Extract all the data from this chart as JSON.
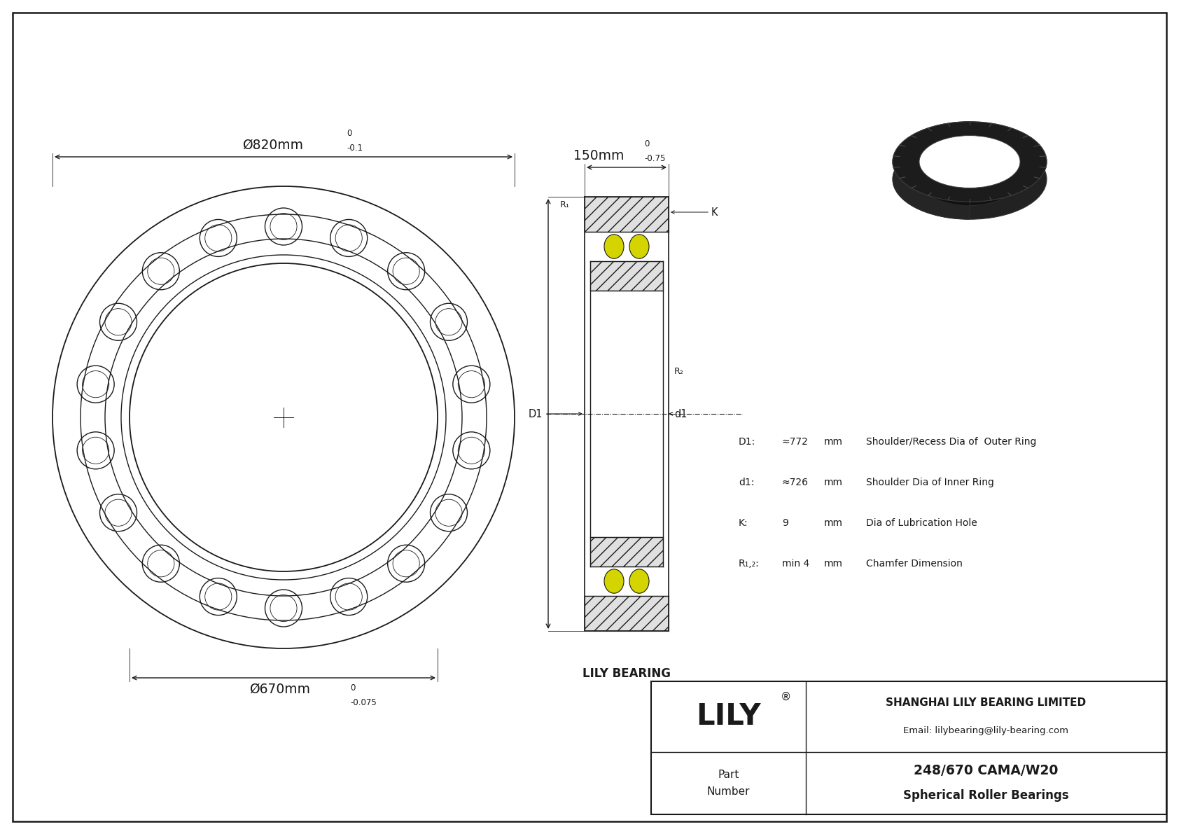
{
  "bg_color": "#ffffff",
  "line_color": "#1a1a1a",
  "outer_diameter_label": "Ø820mm",
  "outer_tolerance_top": "0",
  "outer_tolerance_bot": "-0.1",
  "inner_diameter_label": "Ø670mm",
  "inner_tolerance_top": "0",
  "inner_tolerance_bot": "-0.075",
  "width_label": "150mm",
  "width_tolerance_top": "0",
  "width_tolerance_bot": "-0.75",
  "spec_D1_label": "D1:",
  "spec_D1_val": "≈772",
  "spec_D1_unit": "mm",
  "spec_D1_desc": "Shoulder/Recess Dia of  Outer Ring",
  "spec_d1_label": "d1:",
  "spec_d1_val": "≈726",
  "spec_d1_unit": "mm",
  "spec_d1_desc": "Shoulder Dia of Inner Ring",
  "spec_K_label": "K:",
  "spec_K_val": "9",
  "spec_K_unit": "mm",
  "spec_K_desc": "Dia of Lubrication Hole",
  "spec_R_label": "R₁,₂:",
  "spec_R_val": "min 4",
  "spec_R_unit": "mm",
  "spec_R_desc": "Chamfer Dimension",
  "company_name": "SHANGHAI LILY BEARING LIMITED",
  "company_email": "Email: lilybearing@lily-bearing.com",
  "brand_name": "LILY",
  "part_number": "248/670 CAMA/W20",
  "part_type": "Spherical Roller Bearings",
  "part_label_line1": "Part",
  "part_label_line2": "Number",
  "brand_label": "LILY BEARING",
  "roller_color": "#d4d400",
  "num_rollers": 18
}
